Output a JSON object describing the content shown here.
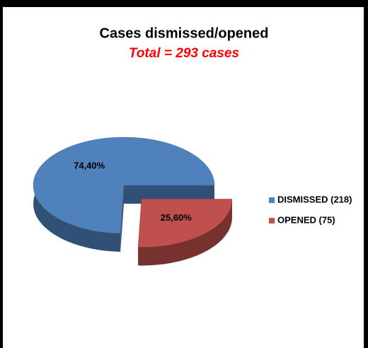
{
  "chart_data": {
    "type": "pie",
    "title": "Cases dismissed/opened",
    "subtitle": "Total = 293 cases",
    "series": [
      {
        "name": "DISMISSED (218)",
        "color": "#4f81bd",
        "values": [
          74.4
        ],
        "value_labels": [
          "74,40%"
        ]
      },
      {
        "name": "OPENED (75)",
        "color": "#c0504d",
        "values": [
          25.6
        ],
        "value_labels": [
          "25,60%"
        ]
      }
    ],
    "legend": "right"
  }
}
